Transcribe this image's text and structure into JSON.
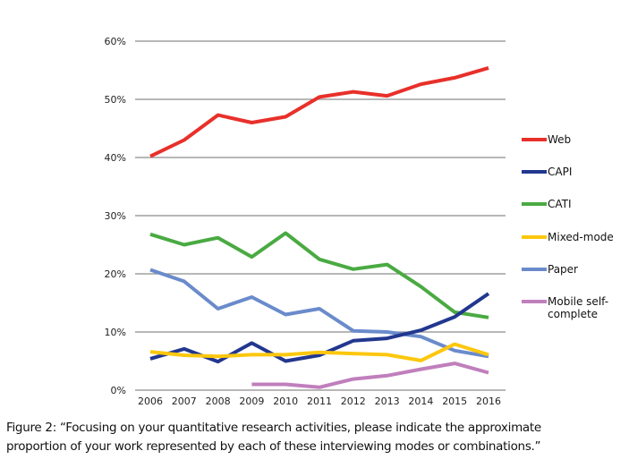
{
  "chart_data": {
    "type": "line",
    "title": "",
    "xlabel": "",
    "ylabel": "",
    "x": [
      "2006",
      "2007",
      "2008",
      "2009",
      "2010",
      "2011",
      "2012",
      "2013",
      "2014",
      "2015",
      "2016"
    ],
    "ylim": [
      0,
      60
    ],
    "yticks": [
      0,
      10,
      20,
      30,
      40,
      50,
      60
    ],
    "ytick_labels": [
      "0%",
      "10%",
      "20%",
      "30%",
      "40%",
      "50%",
      "60%"
    ],
    "grid": true,
    "legend_position": "right",
    "series": [
      {
        "name": "Web",
        "color": "#e8302a",
        "values": [
          40.2,
          43.0,
          47.3,
          46.0,
          47.0,
          50.4,
          51.3,
          50.6,
          52.6,
          53.7,
          55.4
        ]
      },
      {
        "name": "CAPI",
        "color": "#22378f",
        "values": [
          5.4,
          7.1,
          4.9,
          8.1,
          5.0,
          6.0,
          8.5,
          8.9,
          10.3,
          12.6,
          16.6
        ]
      },
      {
        "name": "CATI",
        "color": "#4aaa42",
        "values": [
          26.8,
          25.0,
          26.2,
          22.9,
          27.0,
          22.5,
          20.8,
          21.6,
          17.8,
          13.4,
          12.5
        ]
      },
      {
        "name": "Mixed-mode",
        "color": "#fcc70d",
        "values": [
          6.6,
          6.0,
          5.8,
          6.1,
          6.1,
          6.5,
          6.3,
          6.1,
          5.1,
          7.9,
          6.1
        ]
      },
      {
        "name": "Paper",
        "color": "#6a8bcb",
        "values": [
          20.7,
          18.7,
          14.0,
          16.0,
          13.0,
          14.0,
          10.2,
          10.0,
          9.2,
          6.8,
          5.8
        ]
      },
      {
        "name": "Mobile self-complete",
        "legend_lines": [
          "Mobile self-",
          "complete"
        ],
        "color": "#c07fbc",
        "values": [
          null,
          null,
          null,
          1.0,
          1.0,
          0.5,
          1.9,
          2.5,
          3.6,
          4.6,
          3.0
        ]
      }
    ]
  },
  "caption": {
    "line1": "Figure 2: “Focusing on your quantitative research activities, please indicate the approximate",
    "line2": "proportion of your work represented by each of these interviewing modes or combinations.”"
  }
}
